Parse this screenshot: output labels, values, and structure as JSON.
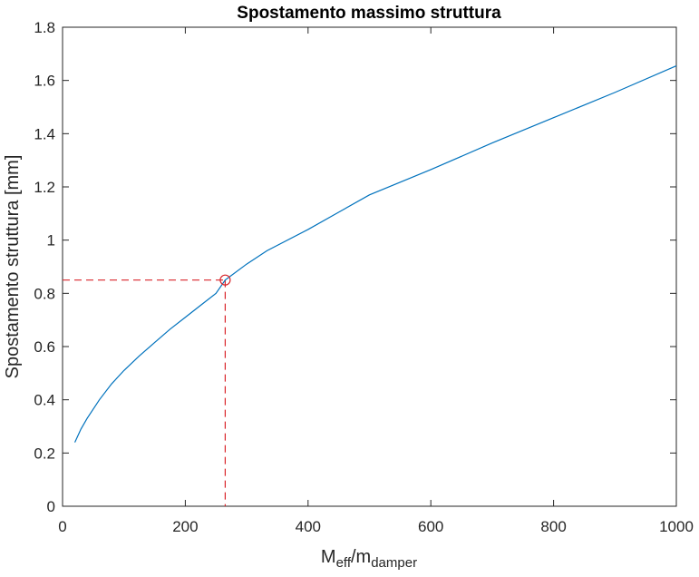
{
  "chart_data": {
    "type": "line",
    "title": "Spostamento massimo struttura",
    "xlabel": {
      "main": "M",
      "sub1": "eff",
      "sep": "/m",
      "sub2": "damper"
    },
    "ylabel": "Spostamento struttura [mm]",
    "xlim": [
      0,
      1000
    ],
    "ylim": [
      0,
      1.8
    ],
    "xticks": [
      0,
      200,
      400,
      600,
      800,
      1000
    ],
    "xtick_labels": [
      "0",
      "200",
      "400",
      "600",
      "800",
      "1000"
    ],
    "yticks": [
      0,
      0.2,
      0.4,
      0.6,
      0.8,
      1,
      1.2,
      1.4,
      1.6,
      1.8
    ],
    "ytick_labels": [
      "0",
      "0.2",
      "0.4",
      "0.6",
      "0.8",
      "1",
      "1.2",
      "1.4",
      "1.6",
      "1.8"
    ],
    "grid": false,
    "series": [
      {
        "color": "#0072BD",
        "x": [
          20,
          30,
          40,
          60,
          80,
          100,
          125,
          150,
          175,
          200,
          225,
          250,
          265,
          300,
          333,
          400,
          450,
          500,
          600,
          700,
          800,
          900,
          1000
        ],
        "y": [
          0.24,
          0.29,
          0.33,
          0.4,
          0.46,
          0.51,
          0.565,
          0.615,
          0.665,
          0.71,
          0.755,
          0.8,
          0.85,
          0.91,
          0.96,
          1.04,
          1.105,
          1.17,
          1.265,
          1.365,
          1.46,
          1.555,
          1.655
        ]
      }
    ],
    "marker": {
      "x": 265,
      "y": 0.85,
      "color": "#D9262B",
      "shape": "circle"
    },
    "reference_lines": {
      "color": "#D9262B",
      "style": "dashed"
    }
  }
}
